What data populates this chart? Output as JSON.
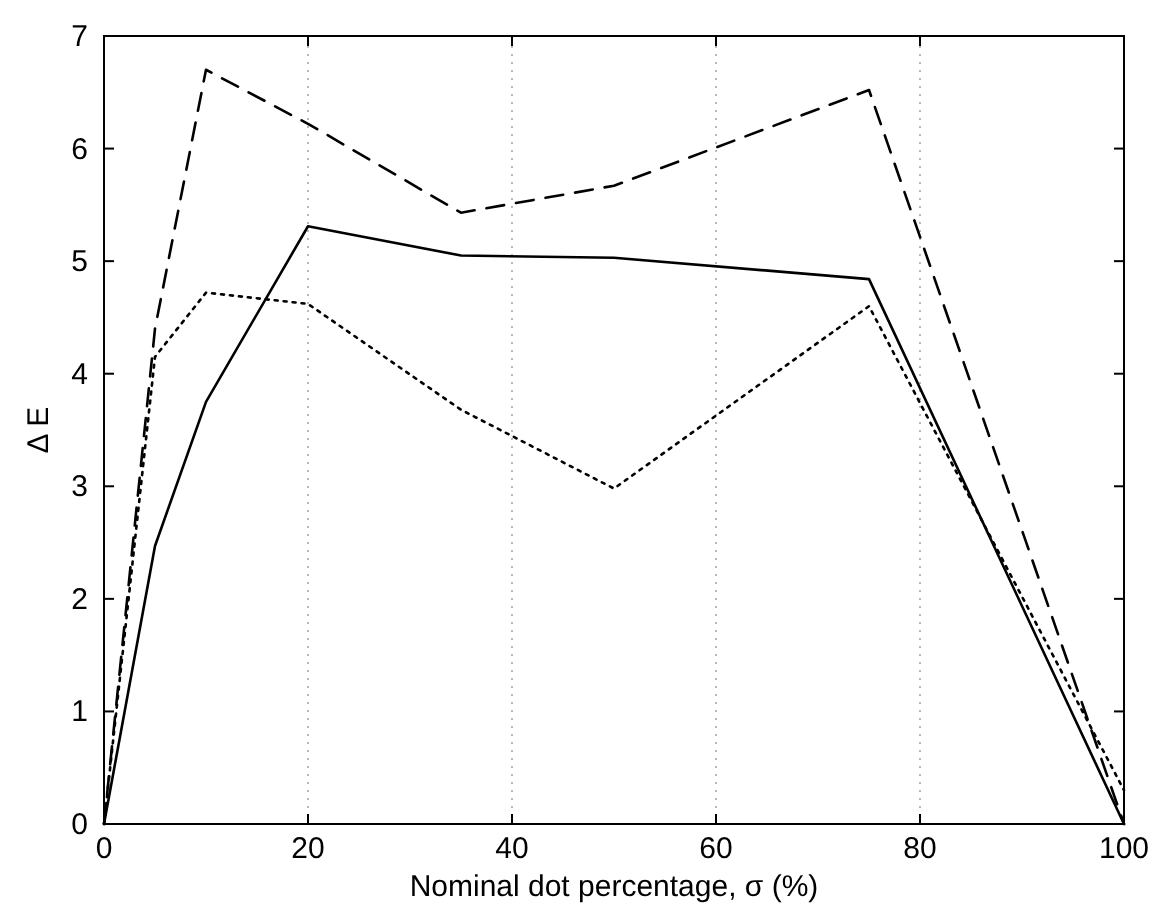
{
  "chart_data": {
    "type": "line",
    "xlabel": "Nominal dot percentage, σ (%)",
    "ylabel": "Δ E",
    "x": [
      0,
      5,
      10,
      20,
      35,
      50,
      75,
      100
    ],
    "series": [
      {
        "color": "#000000",
        "line_style": "solid",
        "values": [
          0,
          2.47,
          3.75,
          5.31,
          5.05,
          5.03,
          4.84,
          0
        ]
      },
      {
        "color": "#000000",
        "line_style": "dashed",
        "values": [
          0,
          4.4,
          6.7,
          6.22,
          5.43,
          5.67,
          6.52,
          0
        ]
      },
      {
        "color": "#000000",
        "line_style": "dotted",
        "values": [
          0,
          4.15,
          4.72,
          4.62,
          3.68,
          2.98,
          4.6,
          0.3
        ]
      }
    ],
    "xlim": [
      0,
      100
    ],
    "xticks": [
      0,
      20,
      40,
      60,
      80,
      100
    ],
    "ylim": [
      0,
      7
    ],
    "yticks": [
      0,
      1,
      2,
      3,
      4,
      5,
      6,
      7
    ],
    "grid": "x",
    "marker": "none"
  }
}
